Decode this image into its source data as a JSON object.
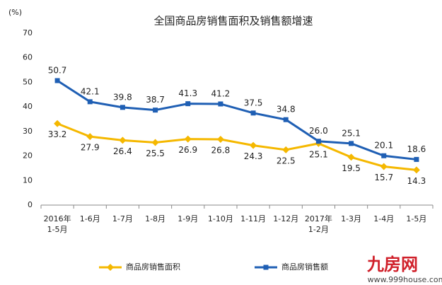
{
  "chart_data": {
    "type": "line",
    "title": "全国商品房销售面积及销售额增速",
    "y_unit": "(%)",
    "categories": [
      "2016年\n1-5月",
      "1-6月",
      "1-7月",
      "1-8月",
      "1-9月",
      "1-10月",
      "1-11月",
      "1-12月",
      "2017年\n1-2月",
      "1-3月",
      "1-4月",
      "1-5月"
    ],
    "series": [
      {
        "name": "商品房销售面积",
        "color": "#f5b800",
        "marker": "diamond",
        "label_position": "below",
        "values": [
          33.2,
          27.9,
          26.4,
          25.5,
          26.9,
          26.8,
          24.3,
          22.5,
          25.1,
          19.5,
          15.7,
          14.3
        ]
      },
      {
        "name": "商品房销售额",
        "color": "#1f5fb4",
        "marker": "square",
        "label_position": "above",
        "values": [
          50.7,
          42.1,
          39.8,
          38.7,
          41.3,
          41.2,
          37.5,
          34.8,
          26.0,
          25.1,
          20.1,
          18.6
        ],
        "value_labels": [
          "50.7",
          "42.1",
          "39.8",
          "38.7",
          "41.3",
          "41.2",
          "37.5",
          "34.8",
          "26.0",
          "25.1",
          "20.1",
          "18.6"
        ]
      }
    ],
    "ylim": [
      0,
      70
    ],
    "yticks": [
      0,
      10,
      20,
      30,
      40,
      50,
      60,
      70
    ],
    "grid": false,
    "legend": "bottom"
  },
  "watermark": {
    "logo": "九房网",
    "url": "www.999house.com"
  }
}
